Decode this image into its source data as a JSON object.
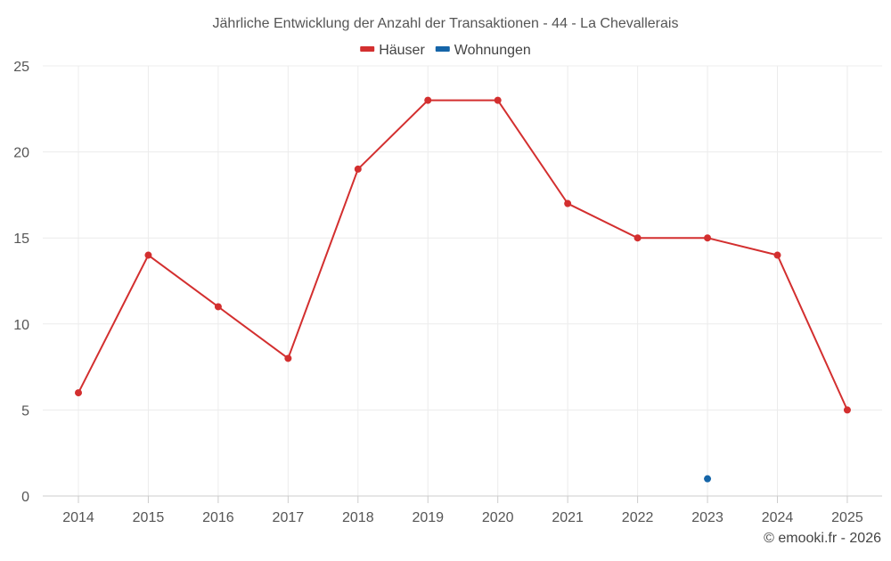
{
  "chart_data": {
    "type": "line",
    "title": "Jährliche Entwicklung der Anzahl der Transaktionen - 44 - La Chevallerais",
    "xlabel": "",
    "ylabel": "",
    "categories": [
      "2014",
      "2015",
      "2016",
      "2017",
      "2018",
      "2019",
      "2020",
      "2021",
      "2022",
      "2023",
      "2024",
      "2025"
    ],
    "ylim": [
      0,
      25
    ],
    "yticks": [
      "0",
      "5",
      "10",
      "15",
      "20",
      "25"
    ],
    "grid": true,
    "legend_position": "top-center",
    "series": [
      {
        "name": "Häuser",
        "color": "#d32f2f",
        "values": [
          6,
          14,
          11,
          8,
          19,
          23,
          23,
          17,
          15,
          15,
          14,
          5
        ]
      },
      {
        "name": "Wohnungen",
        "color": "#1565a8",
        "values": [
          null,
          null,
          null,
          null,
          null,
          null,
          null,
          null,
          null,
          1,
          null,
          null
        ]
      }
    ],
    "credit": "© emooki.fr - 2026"
  }
}
